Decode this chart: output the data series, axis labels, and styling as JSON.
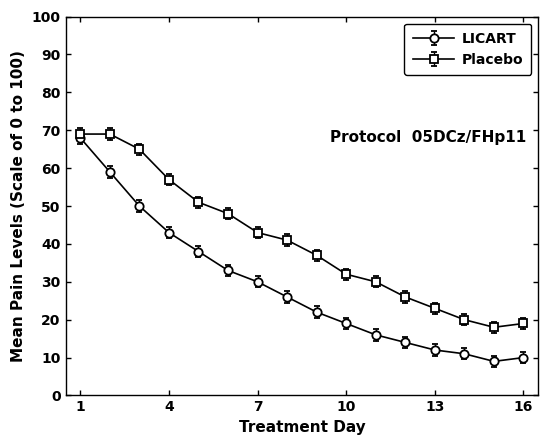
{
  "licart_days": [
    1,
    2,
    3,
    4,
    5,
    6,
    7,
    8,
    9,
    10,
    11,
    12,
    13,
    14,
    15,
    16
  ],
  "licart_values": [
    68,
    59,
    50,
    43,
    38,
    33,
    30,
    26,
    22,
    19,
    16,
    14,
    12,
    11,
    9,
    10
  ],
  "licart_errors": [
    1.5,
    1.5,
    1.5,
    1.5,
    1.5,
    1.5,
    1.5,
    1.5,
    1.5,
    1.5,
    1.5,
    1.5,
    1.5,
    1.5,
    1.5,
    1.5
  ],
  "placebo_days": [
    1,
    2,
    3,
    4,
    5,
    6,
    7,
    8,
    9,
    10,
    11,
    12,
    13,
    14,
    15,
    16
  ],
  "placebo_values": [
    69,
    69,
    65,
    57,
    51,
    48,
    43,
    41,
    37,
    32,
    30,
    26,
    23,
    20,
    18,
    19
  ],
  "placebo_errors": [
    1.5,
    1.5,
    1.5,
    1.5,
    1.5,
    1.5,
    1.5,
    1.5,
    1.5,
    1.5,
    1.5,
    1.5,
    1.5,
    1.5,
    1.5,
    1.5
  ],
  "xlabel": "Treatment Day",
  "ylabel": "Mean Pain Levels (Scale of 0 to 100)",
  "annotation": "Protocol  05DCz/FHp11",
  "xlim": [
    0.5,
    16.5
  ],
  "ylim": [
    0,
    100
  ],
  "xticks": [
    1,
    4,
    7,
    10,
    13,
    16
  ],
  "yticks": [
    0,
    10,
    20,
    30,
    40,
    50,
    60,
    70,
    80,
    90,
    100
  ],
  "legend_labels": [
    "LICART",
    "Placebo"
  ],
  "line_color": "#000000",
  "background_color": "#ffffff",
  "marker_size": 6,
  "line_width": 1.2,
  "annotation_fontsize": 11,
  "axis_fontsize": 11,
  "tick_fontsize": 10,
  "legend_fontsize": 10
}
